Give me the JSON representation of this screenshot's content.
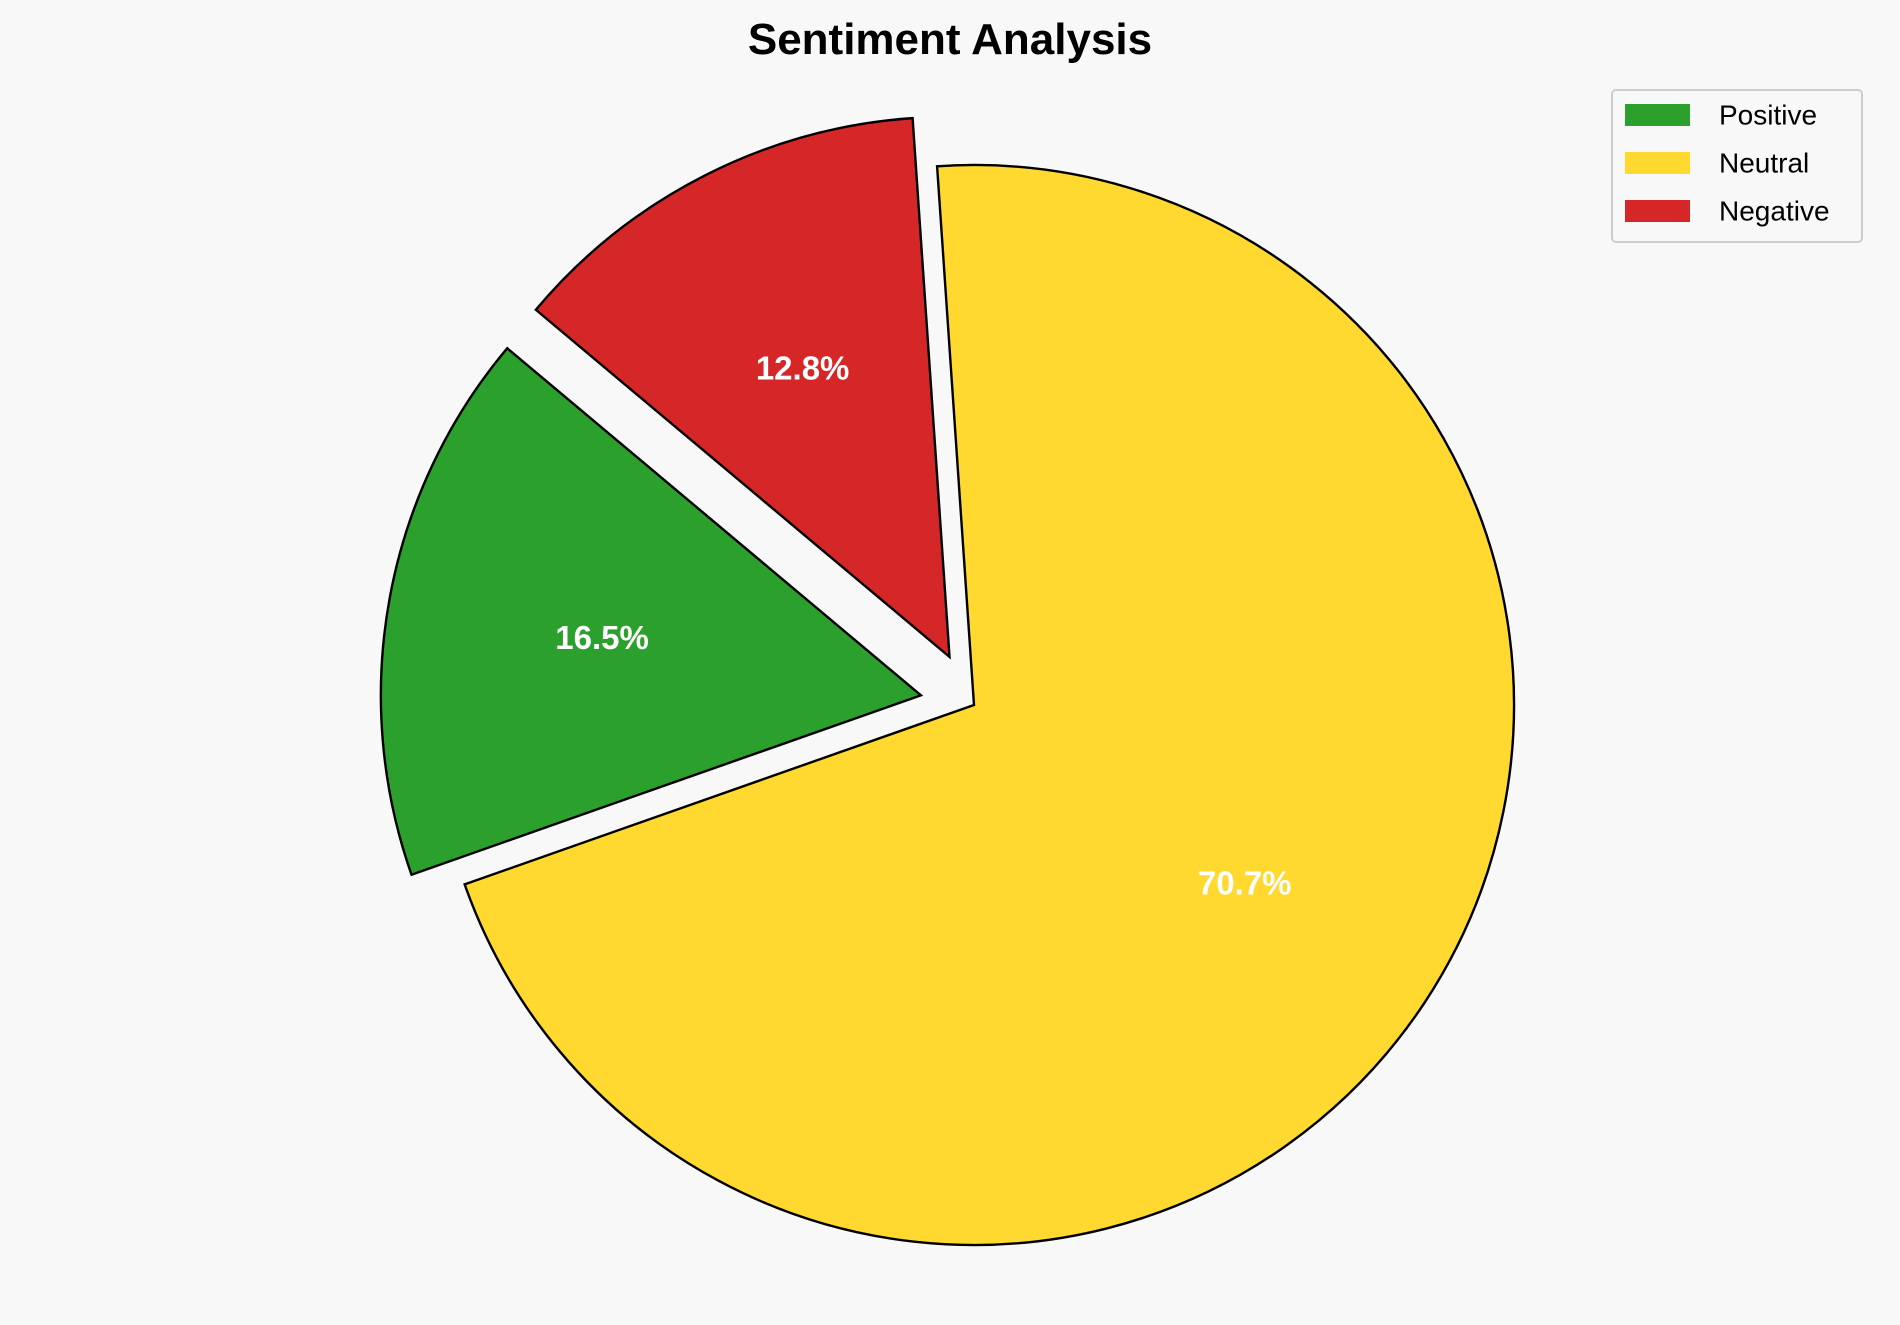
{
  "chart_data": {
    "type": "pie",
    "title": "Sentiment Analysis",
    "categories": [
      "Positive",
      "Neutral",
      "Negative"
    ],
    "values": [
      16.5,
      70.7,
      12.8
    ],
    "labels": [
      "16.5%",
      "70.7%",
      "12.8%"
    ],
    "colors": [
      "#2ca02c",
      "#ffd92f",
      "#d62728"
    ],
    "explode": [
      0.1,
      0,
      0.1
    ],
    "start_angle": 140,
    "legend_position": "top-right",
    "edge_color": "#000000"
  }
}
